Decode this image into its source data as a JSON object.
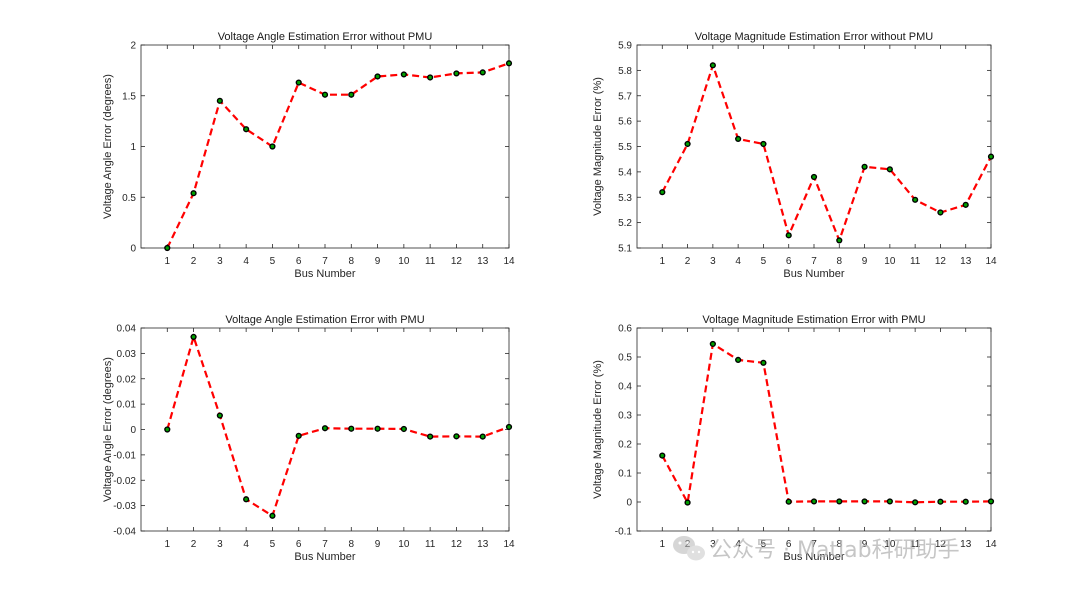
{
  "chart_data": [
    {
      "type": "line",
      "title": "Voltage Angle Estimation Error without PMU",
      "xlabel": "Bus Number",
      "ylabel": "Voltage Angle Error (degrees)",
      "x": [
        1,
        2,
        3,
        4,
        5,
        6,
        7,
        8,
        9,
        10,
        11,
        12,
        13,
        14
      ],
      "values": [
        0,
        0.54,
        1.45,
        1.17,
        1.0,
        1.63,
        1.51,
        1.51,
        1.69,
        1.71,
        1.68,
        1.72,
        1.73,
        1.82
      ],
      "xlim": [
        0,
        14
      ],
      "ylim": [
        0,
        2
      ],
      "yticks": [
        0,
        0.5,
        1,
        1.5,
        2
      ],
      "ytick_labels": [
        "0",
        "0.5",
        "1",
        "1.5",
        "2"
      ],
      "xtick_labels": [
        "1",
        "2",
        "3",
        "4",
        "5",
        "6",
        "7",
        "8",
        "9",
        "10",
        "11",
        "12",
        "13",
        "14"
      ],
      "line_color": "#ff0000",
      "marker_color": "#00a000"
    },
    {
      "type": "line",
      "title": "Voltage Magnitude Estimation Error without PMU",
      "xlabel": "Bus Number",
      "ylabel": "Voltage Magnitude Error (%)",
      "x": [
        1,
        2,
        3,
        4,
        5,
        6,
        7,
        8,
        9,
        10,
        11,
        12,
        13,
        14
      ],
      "values": [
        5.32,
        5.51,
        5.82,
        5.53,
        5.51,
        5.15,
        5.38,
        5.13,
        5.42,
        5.41,
        5.29,
        5.24,
        5.27,
        5.46
      ],
      "xlim": [
        0,
        14
      ],
      "ylim": [
        5.1,
        5.9
      ],
      "yticks": [
        5.1,
        5.2,
        5.3,
        5.4,
        5.5,
        5.6,
        5.7,
        5.8,
        5.9
      ],
      "ytick_labels": [
        "5.1",
        "5.2",
        "5.3",
        "5.4",
        "5.5",
        "5.6",
        "5.7",
        "5.8",
        "5.9"
      ],
      "xtick_labels": [
        "1",
        "2",
        "3",
        "4",
        "5",
        "6",
        "7",
        "8",
        "9",
        "10",
        "11",
        "12",
        "13",
        "14"
      ],
      "line_color": "#ff0000",
      "marker_color": "#00a000"
    },
    {
      "type": "line",
      "title": "Voltage Angle Estimation Error with PMU",
      "xlabel": "Bus Number",
      "ylabel": "Voltage Angle Error (degrees)",
      "x": [
        1,
        2,
        3,
        4,
        5,
        6,
        7,
        8,
        9,
        10,
        11,
        12,
        13,
        14
      ],
      "values": [
        0,
        0.0365,
        0.0055,
        -0.0275,
        -0.034,
        -0.0025,
        0.0005,
        0.0003,
        0.0003,
        0.0002,
        -0.0028,
        -0.0027,
        -0.0028,
        0.001
      ],
      "xlim": [
        0,
        14
      ],
      "ylim": [
        -0.04,
        0.04
      ],
      "yticks": [
        -0.04,
        -0.03,
        -0.02,
        -0.01,
        0,
        0.01,
        0.02,
        0.03,
        0.04
      ],
      "ytick_labels": [
        "-0.04",
        "-0.03",
        "-0.02",
        "-0.01",
        "0",
        "0.01",
        "0.02",
        "0.03",
        "0.04"
      ],
      "xtick_labels": [
        "1",
        "2",
        "3",
        "4",
        "5",
        "6",
        "7",
        "8",
        "9",
        "10",
        "11",
        "12",
        "13",
        "14"
      ],
      "line_color": "#ff0000",
      "marker_color": "#00a000"
    },
    {
      "type": "line",
      "title": "Voltage Magnitude Estimation Error with PMU",
      "xlabel": "Bus Number",
      "ylabel": "Voltage Magnitude Error (%)",
      "x": [
        1,
        2,
        3,
        4,
        5,
        6,
        7,
        8,
        9,
        10,
        11,
        12,
        13,
        14
      ],
      "values": [
        0.16,
        -0.002,
        0.545,
        0.49,
        0.48,
        0.001,
        0.002,
        0.002,
        0.002,
        0.002,
        -0.001,
        0.001,
        0.001,
        0.002
      ],
      "xlim": [
        0,
        14
      ],
      "ylim": [
        -0.1,
        0.6
      ],
      "yticks": [
        -0.1,
        0,
        0.1,
        0.2,
        0.3,
        0.4,
        0.5,
        0.6
      ],
      "ytick_labels": [
        "-0.1",
        "0",
        "0.1",
        "0.2",
        "0.3",
        "0.4",
        "0.5",
        "0.6"
      ],
      "xtick_labels": [
        "1",
        "2",
        "3",
        "4",
        "5",
        "6",
        "7",
        "8",
        "9",
        "10",
        "11",
        "12",
        "13",
        "14"
      ],
      "line_color": "#ff0000",
      "marker_color": "#00a000"
    }
  ],
  "watermark": {
    "text": "公众号 · Matlab科研助手",
    "icon": "wechat-icon"
  }
}
